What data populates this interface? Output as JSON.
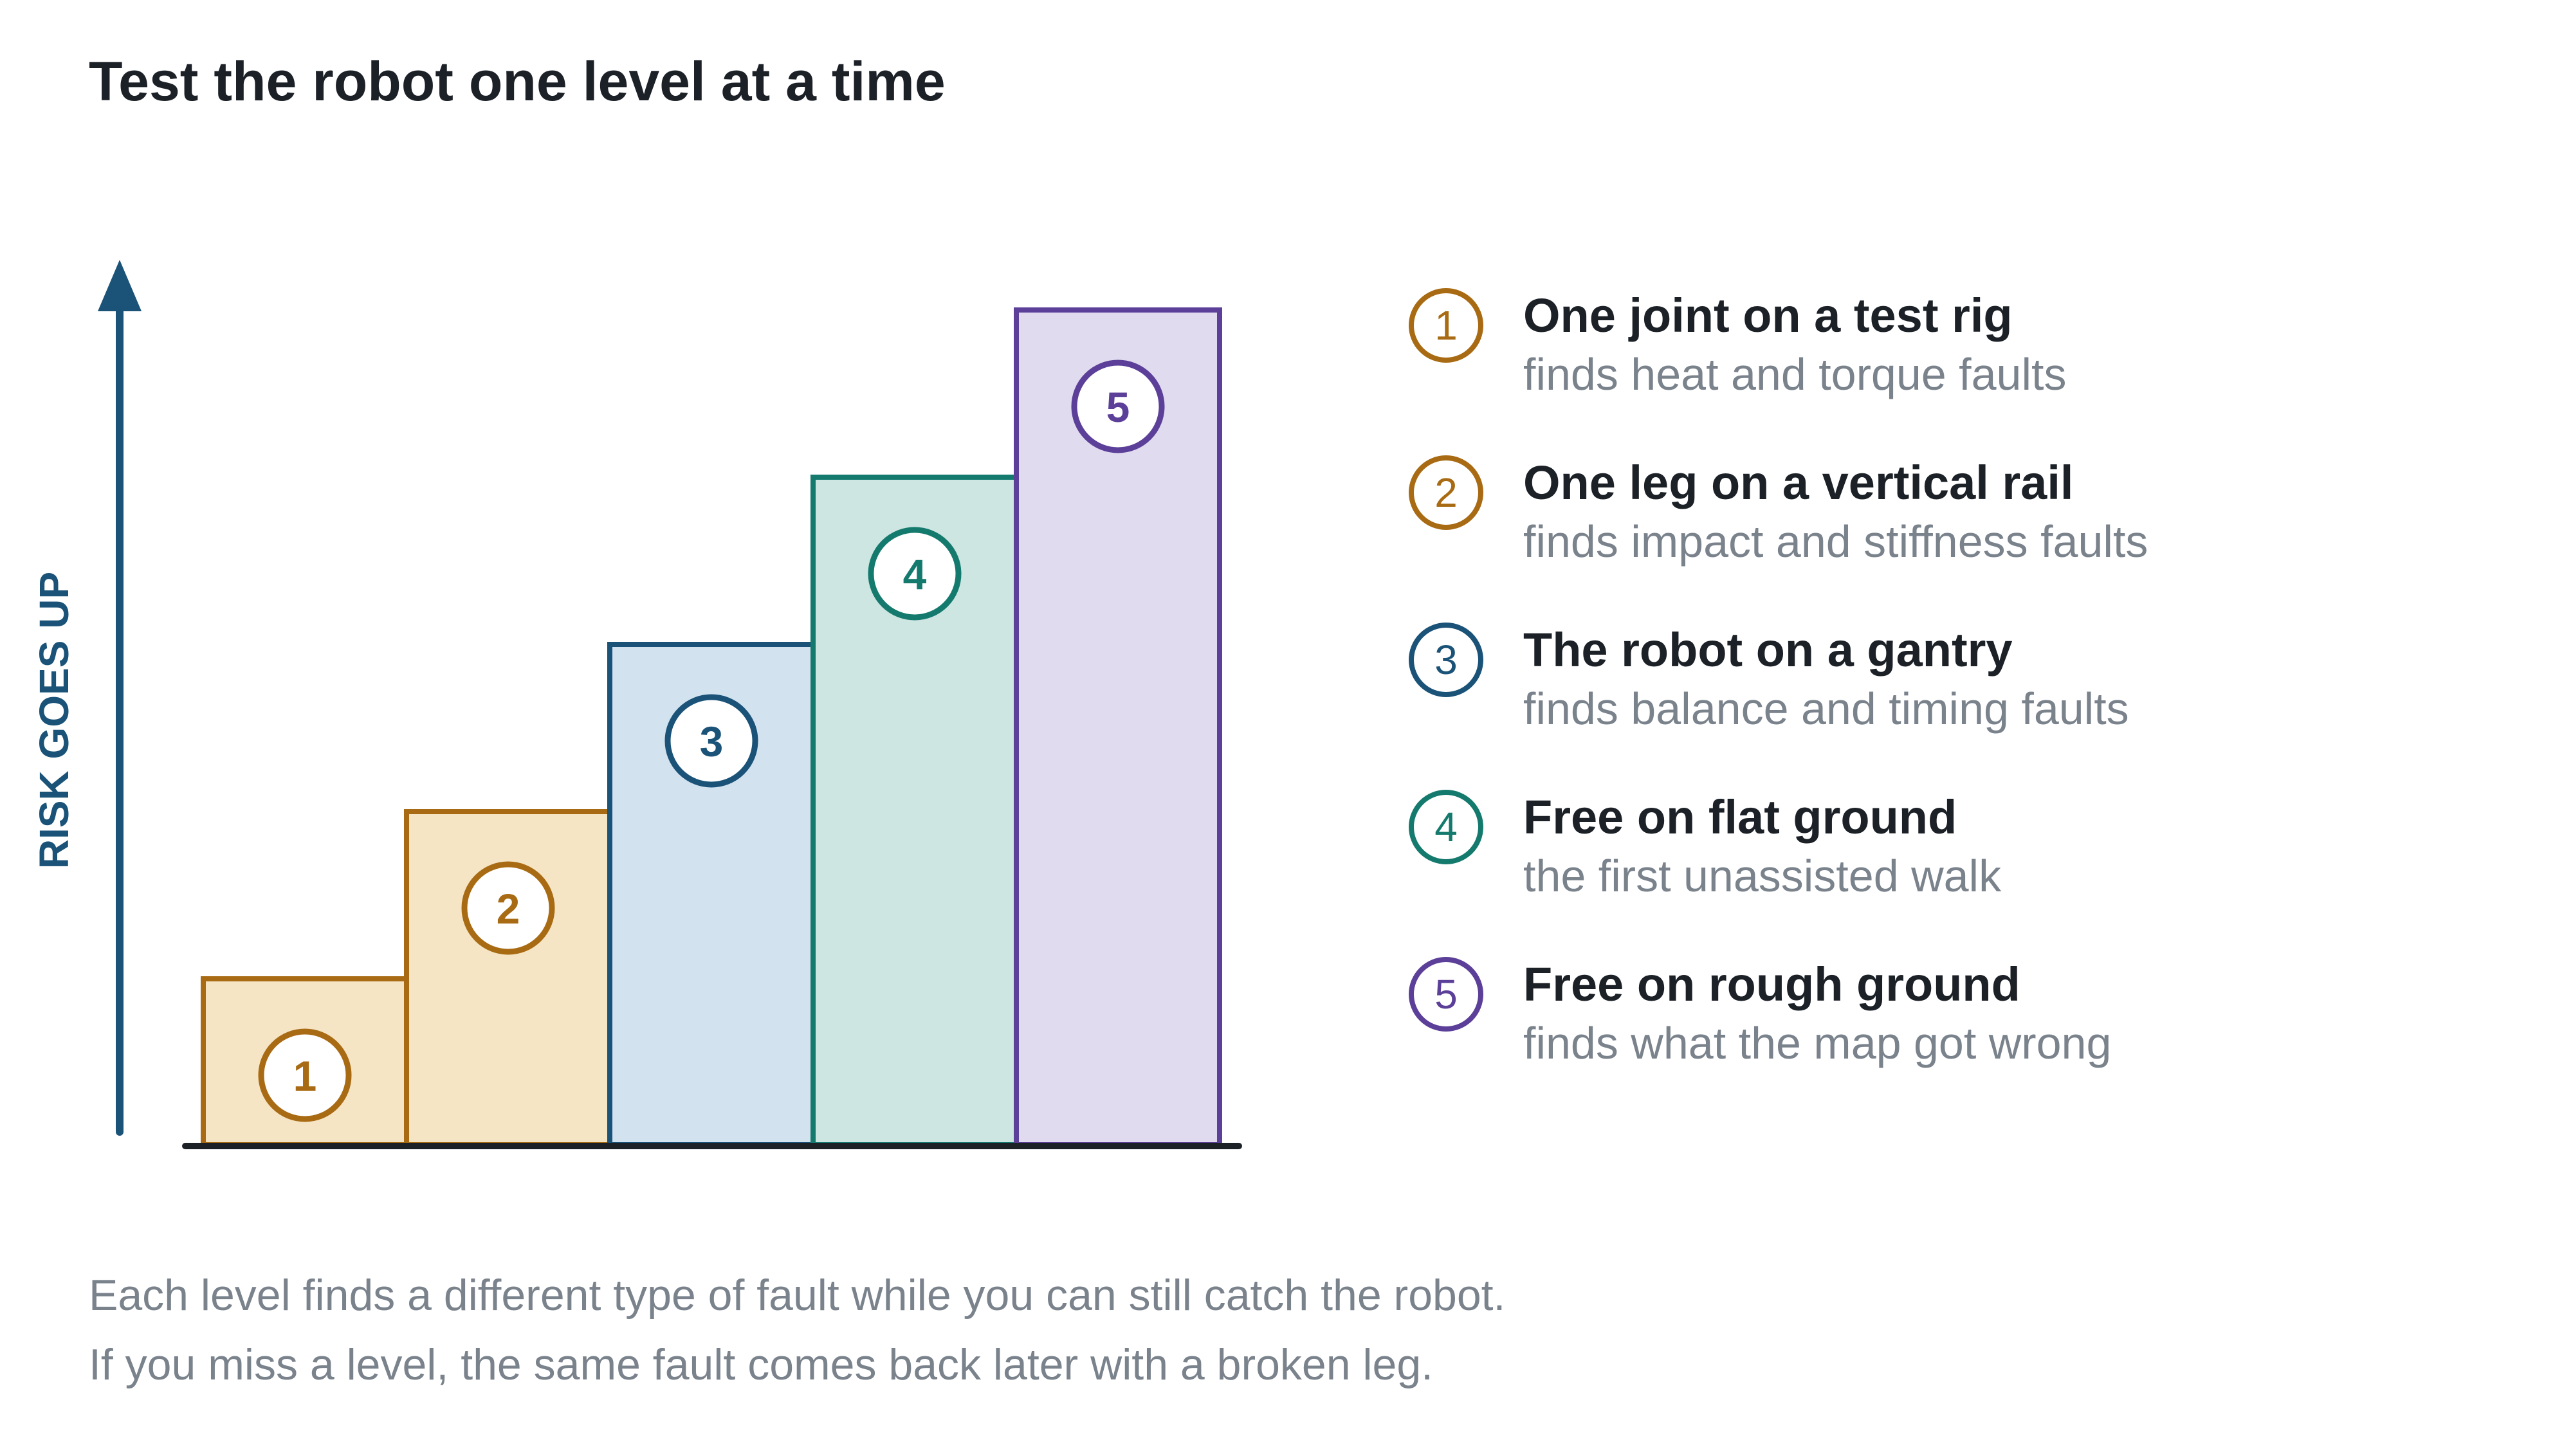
{
  "title": "Test the robot one level at a time",
  "axis": {
    "label": "RISK GOES UP",
    "color": "#1a5278"
  },
  "baseline_color": "#1c2127",
  "levels": [
    {
      "number": "1",
      "title": "One joint on a test rig",
      "subtitle": "finds heat and torque faults",
      "stroke": "#a86a12",
      "fill": "#f5e5c5"
    },
    {
      "number": "2",
      "title": "One leg on a vertical rail",
      "subtitle": "finds impact and stiffness faults",
      "stroke": "#a86a12",
      "fill": "#f5e5c5"
    },
    {
      "number": "3",
      "title": "The robot on a gantry",
      "subtitle": "finds balance and timing faults",
      "stroke": "#1a5278",
      "fill": "#d3e2ef"
    },
    {
      "number": "4",
      "title": "Free on flat ground",
      "subtitle": "the first unassisted walk",
      "stroke": "#157a6e",
      "fill": "#cde6e2"
    },
    {
      "number": "5",
      "title": "Free on rough ground",
      "subtitle": "finds what the map got wrong",
      "stroke": "#5b3f98",
      "fill": "#e0dbef"
    }
  ],
  "caption": {
    "line1": "Each level finds a different type of fault while you can still catch the robot.",
    "line2": "If you miss a level, the same fault comes back later with a broken leg."
  }
}
